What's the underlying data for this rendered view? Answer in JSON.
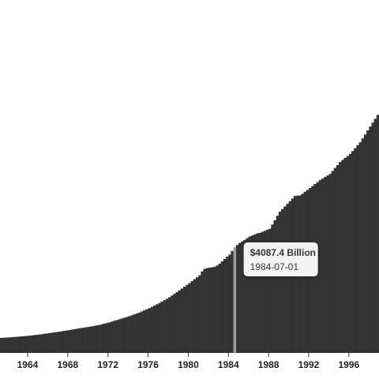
{
  "chart_data": {
    "type": "bar",
    "color": "#333333",
    "highlight_color": "#9a9a9a",
    "x": [
      "1961-04-01",
      "1961-07-01",
      "1961-10-01",
      "1962-01-01",
      "1962-04-01",
      "1962-07-01",
      "1962-10-01",
      "1963-01-01",
      "1963-04-01",
      "1963-07-01",
      "1963-10-01",
      "1964-01-01",
      "1964-04-01",
      "1964-07-01",
      "1964-10-01",
      "1965-01-01",
      "1965-04-01",
      "1965-07-01",
      "1965-10-01",
      "1966-01-01",
      "1966-04-01",
      "1966-07-01",
      "1966-10-01",
      "1967-01-01",
      "1967-04-01",
      "1967-07-01",
      "1967-10-01",
      "1968-01-01",
      "1968-04-01",
      "1968-07-01",
      "1968-10-01",
      "1969-01-01",
      "1969-04-01",
      "1969-07-01",
      "1969-10-01",
      "1970-01-01",
      "1970-04-01",
      "1970-07-01",
      "1970-10-01",
      "1971-01-01",
      "1971-04-01",
      "1971-07-01",
      "1971-10-01",
      "1972-01-01",
      "1972-04-01",
      "1972-07-01",
      "1972-10-01",
      "1973-01-01",
      "1973-04-01",
      "1973-07-01",
      "1973-10-01",
      "1974-01-01",
      "1974-04-01",
      "1974-07-01",
      "1974-10-01",
      "1975-01-01",
      "1975-04-01",
      "1975-07-01",
      "1975-10-01",
      "1976-01-01",
      "1976-04-01",
      "1976-07-01",
      "1976-10-01",
      "1977-01-01",
      "1977-04-01",
      "1977-07-01",
      "1977-10-01",
      "1978-01-01",
      "1978-04-01",
      "1978-07-01",
      "1978-10-01",
      "1979-01-01",
      "1979-04-01",
      "1979-07-01",
      "1979-10-01",
      "1980-01-01",
      "1980-04-01",
      "1980-07-01",
      "1980-10-01",
      "1981-01-01",
      "1981-04-01",
      "1981-07-01",
      "1981-10-01",
      "1982-01-01",
      "1982-04-01",
      "1982-07-01",
      "1982-10-01",
      "1983-01-01",
      "1983-04-01",
      "1983-07-01",
      "1983-10-01",
      "1984-01-01",
      "1984-04-01",
      "1984-07-01",
      "1984-10-01",
      "1985-01-01",
      "1985-04-01",
      "1985-07-01",
      "1985-10-01",
      "1986-01-01",
      "1986-04-01",
      "1986-07-01",
      "1986-10-01",
      "1987-01-01",
      "1987-04-01",
      "1987-07-01",
      "1987-10-01",
      "1988-01-01",
      "1988-04-01",
      "1988-07-01",
      "1988-10-01",
      "1989-01-01",
      "1989-04-01",
      "1989-07-01",
      "1989-10-01",
      "1990-01-01",
      "1990-04-01",
      "1990-07-01",
      "1990-10-01",
      "1991-01-01",
      "1991-04-01",
      "1991-07-01",
      "1991-10-01",
      "1992-01-01",
      "1992-04-01",
      "1992-07-01",
      "1992-10-01",
      "1993-01-01",
      "1993-04-01",
      "1993-07-01",
      "1993-10-01",
      "1994-01-01",
      "1994-04-01",
      "1994-07-01",
      "1994-10-01",
      "1995-01-01",
      "1995-04-01",
      "1995-07-01",
      "1995-10-01",
      "1996-01-01",
      "1996-04-01",
      "1996-07-01",
      "1996-10-01",
      "1997-01-01",
      "1997-04-01",
      "1997-07-01",
      "1997-10-01",
      "1998-01-01",
      "1998-04-01",
      "1998-07-01",
      "1998-10-01"
    ],
    "values": [
      580,
      587,
      593,
      600,
      608,
      615,
      623,
      630,
      639,
      648,
      656,
      665,
      676,
      688,
      699,
      710,
      724,
      738,
      751,
      765,
      779,
      793,
      806,
      820,
      835,
      850,
      865,
      880,
      898,
      915,
      933,
      950,
      965,
      980,
      995,
      1010,
      1028,
      1045,
      1063,
      1080,
      1105,
      1130,
      1155,
      1180,
      1210,
      1240,
      1270,
      1300,
      1330,
      1360,
      1390,
      1420,
      1455,
      1490,
      1525,
      1560,
      1603,
      1645,
      1688,
      1730,
      1780,
      1830,
      1880,
      1930,
      1985,
      2040,
      2095,
      2150,
      2218,
      2285,
      2353,
      2420,
      2490,
      2560,
      2630,
      2700,
      2775,
      2850,
      2925,
      3000,
      3150,
      3250,
      3280,
      3300,
      3310,
      3330,
      3380,
      3450,
      3540,
      3630,
      3720,
      3800,
      3940,
      4087.4,
      4170,
      4250,
      4310,
      4370,
      4440,
      4500,
      4540,
      4580,
      4620,
      4640,
      4680,
      4720,
      4760,
      4800,
      4960,
      5130,
      5300,
      5460,
      5560,
      5660,
      5760,
      5860,
      5970,
      6070,
      6080,
      6090,
      6150,
      6230,
      6300,
      6375,
      6450,
      6530,
      6600,
      6680,
      6740,
      6800,
      6860,
      6920,
      7030,
      7150,
      7260,
      7380,
      7460,
      7540,
      7610,
      7690,
      7800,
      7910,
      8030,
      8140,
      8290,
      8440,
      8600,
      8750,
      8900,
      9050,
      9200
    ],
    "xlim": [
      "1961-04-01",
      "1999-01-01"
    ],
    "xticks": [
      "1964",
      "1968",
      "1972",
      "1976",
      "1980",
      "1984",
      "1988",
      "1992",
      "1996"
    ],
    "ylim": [
      0,
      13640
    ],
    "tooltip": {
      "value_label": "$4087.4 Billion",
      "x": "1984-07-01"
    }
  }
}
